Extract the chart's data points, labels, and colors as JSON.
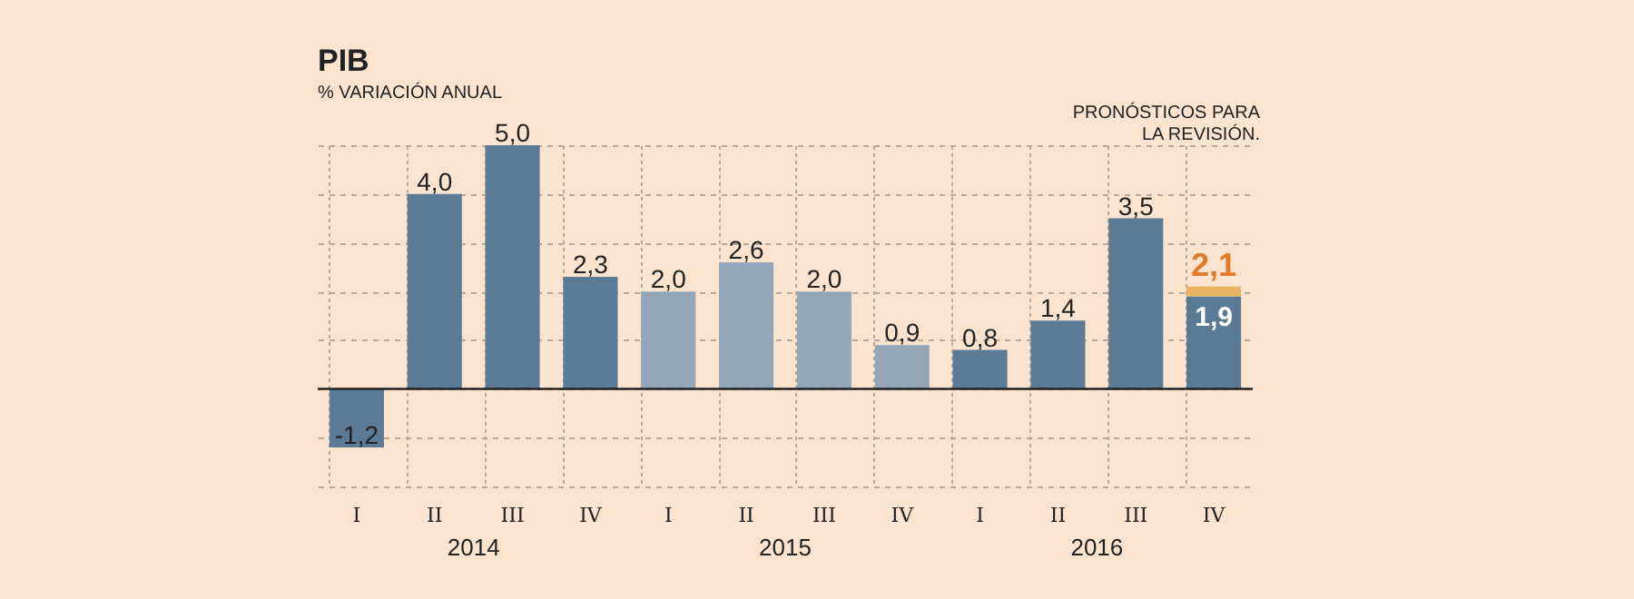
{
  "chart_data": {
    "type": "bar",
    "title": "PIB",
    "subtitle": "% VARIACIÓN ANUAL",
    "categories": [
      "I",
      "II",
      "III",
      "IV",
      "I",
      "II",
      "III",
      "IV",
      "I",
      "II",
      "III",
      "IV"
    ],
    "stacked": true,
    "series": [
      {
        "colors": [
          "#5b7a96",
          "#5b7a96",
          "#5b7a96",
          "#5b7a96",
          "#93a7b8",
          "#93a7b8",
          "#93a7b8",
          "#93a7b8",
          "#5b7a96",
          "#5b7a96",
          "#5b7a96",
          "#5b7a96"
        ],
        "values": [
          -1.2,
          4.0,
          5.0,
          2.3,
          2.0,
          2.6,
          2.0,
          0.9,
          0.8,
          1.4,
          3.5,
          1.9
        ],
        "value_labels": [
          "-1,2",
          "4,0",
          "5,0",
          "2,3",
          "2,0",
          "2,6",
          "2,0",
          "0,9",
          "0,8",
          "1,4",
          "3,5",
          "1,9"
        ]
      },
      {
        "color": "#e8b462",
        "values": [
          null,
          null,
          null,
          null,
          null,
          null,
          null,
          null,
          null,
          null,
          null,
          0.2
        ]
      }
    ],
    "totals": [
      null,
      null,
      null,
      null,
      null,
      null,
      null,
      null,
      null,
      null,
      null,
      "2,1"
    ],
    "annotations": [
      "2014",
      "2015",
      "2016",
      "PRONÓSTICOS PARA LA REVISIÓN."
    ],
    "ylim": [
      -2,
      5
    ],
    "tick_labels": "x",
    "grid": true
  }
}
